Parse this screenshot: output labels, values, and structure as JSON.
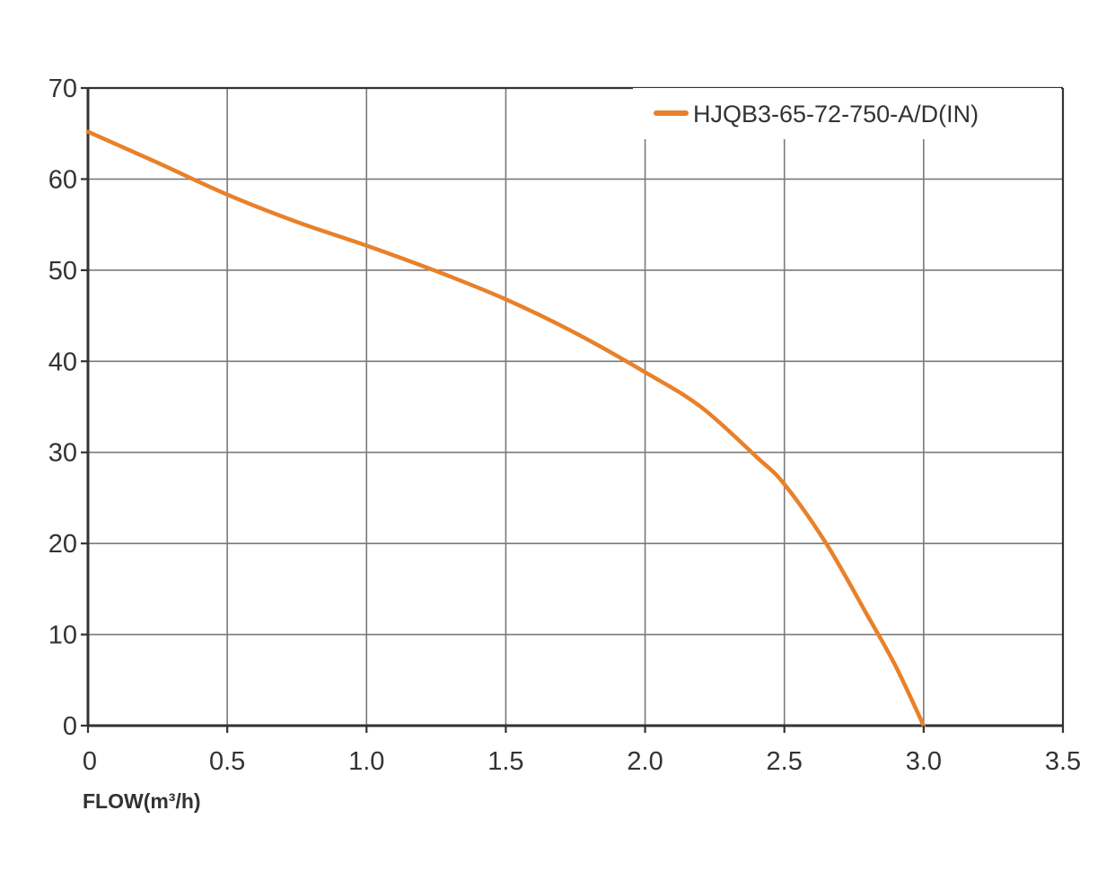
{
  "chart_data": {
    "type": "line",
    "title": "",
    "xlabel": "FLOW(m³/h)",
    "ylabel": "",
    "xlim": [
      0,
      3.5
    ],
    "ylim": [
      0,
      70
    ],
    "x_ticks": [
      "0",
      "0.5",
      "1.0",
      "1.5",
      "2.0",
      "2.5",
      "3.0",
      "3.5"
    ],
    "x_tick_values": [
      0,
      0.5,
      1.0,
      1.5,
      2.0,
      2.5,
      3.0,
      3.5
    ],
    "y_ticks": [
      "0",
      "10",
      "20",
      "30",
      "40",
      "50",
      "60",
      "70"
    ],
    "y_tick_values": [
      0,
      10,
      20,
      30,
      40,
      50,
      60,
      70
    ],
    "grid": true,
    "legend_position": "top-right",
    "series": [
      {
        "name": "HJQB3-65-72-750-A/D(IN)",
        "color": "#E8812A",
        "x": [
          0,
          0.25,
          0.5,
          0.75,
          1.0,
          1.25,
          1.5,
          1.75,
          2.0,
          2.2,
          2.4,
          2.5,
          2.65,
          2.8,
          2.9,
          3.0
        ],
        "y": [
          65.2,
          61.8,
          58.3,
          55.3,
          52.7,
          49.9,
          46.8,
          43.1,
          38.8,
          35.0,
          29.5,
          26.5,
          20.0,
          12.0,
          6.5,
          0
        ]
      }
    ]
  }
}
